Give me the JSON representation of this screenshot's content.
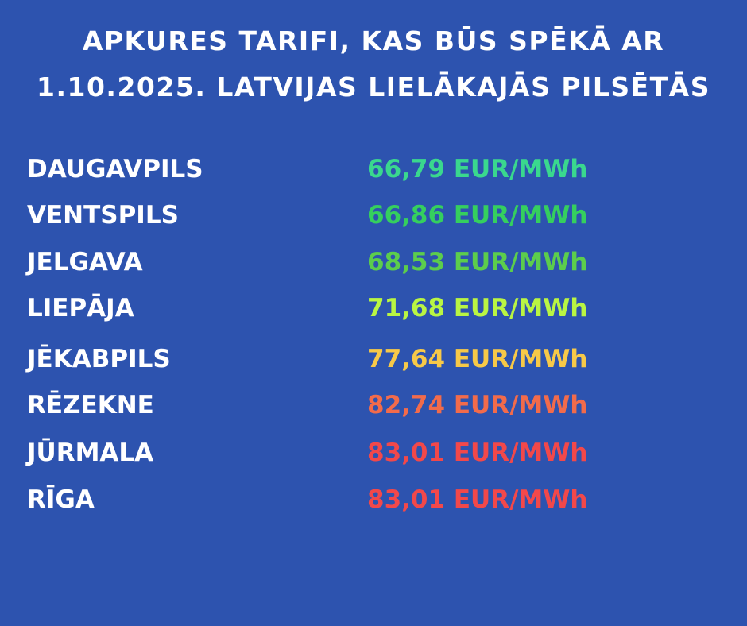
{
  "title": [
    "APKURES TARIFI, KAS BŪS SPĒKĀ AR",
    "1.10.2025. LATVIJAS LIELĀKAJĀS PILSĒTĀS"
  ],
  "rows": [
    {
      "city": "DAUGAVPILS",
      "tariff": "66,79 EUR/MWh",
      "color": "#3ad88e"
    },
    {
      "city": "VENTSPILS",
      "tariff": "66,86 EUR/MWh",
      "color": "#35cf5e"
    },
    {
      "city": "JELGAVA",
      "tariff": "68,53 EUR/MWh",
      "color": "#5ccd4c"
    },
    {
      "city": "LIEPĀJA",
      "tariff": "71,68 EUR/MWh",
      "color": "#b9f543"
    },
    {
      "city": "JĒKABPILS",
      "tariff": "77,64 EUR/MWh",
      "color": "#f7c948"
    },
    {
      "city": "RĒZEKNE",
      "tariff": "82,74 EUR/MWh",
      "color": "#f26b4b"
    },
    {
      "city": "JŪRMALA",
      "tariff": "83,01 EUR/MWh",
      "color": "#f2484a"
    },
    {
      "city": "RĪGA",
      "tariff": "83,01 EUR/MWh",
      "color": "#f2484a"
    }
  ]
}
